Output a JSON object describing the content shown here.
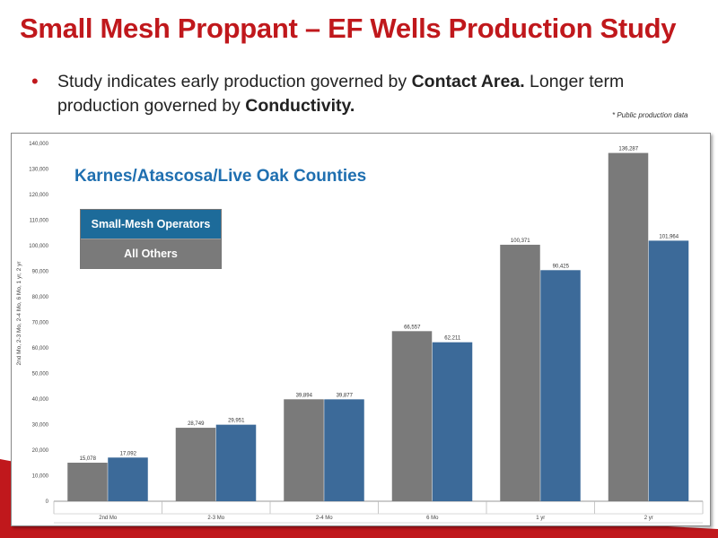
{
  "title": "Small Mesh Proppant – EF Wells Production Study",
  "bullet": {
    "text_1": "Study indicates early production governed by ",
    "bold_1": "Contact Area.",
    "text_2": "  Longer term production governed by ",
    "bold_2": "Conductivity."
  },
  "note": "* Public production data",
  "colors": {
    "title_red": "#c0181c",
    "small_mesh_legend": "#1d6b9a",
    "all_others_bar": "#7a7a7a",
    "small_mesh_bar": "#3c6a99",
    "county_title": "#1f6fb0"
  },
  "chart_data": {
    "type": "bar",
    "title": "Karnes/Atascosa/Live Oak Counties",
    "ylabel": "2nd Mo, 2-3 Mo, 2-4 Mo, 6 Mo, 1 yr, 2 yr",
    "xlabel": "",
    "ylim": [
      0,
      140000
    ],
    "yticks": [
      "0",
      "10,000",
      "20,000",
      "30,000",
      "40,000",
      "50,000",
      "60,000",
      "70,000",
      "80,000",
      "90,000",
      "100,000",
      "110,000",
      "120,000",
      "130,000",
      "140,000"
    ],
    "categories": [
      "2nd Mo",
      "2-3 Mo",
      "2-4 Mo",
      "6 Mo",
      "1 yr",
      "2 yr"
    ],
    "legend": [
      "Small-Mesh Operators",
      "All Others"
    ],
    "series": [
      {
        "name": "All Others",
        "color": "#7a7a7a",
        "values": [
          15078,
          28749,
          39894,
          66557,
          100371,
          136287
        ],
        "labels": [
          "15,078",
          "28,749",
          "39,894",
          "66,557",
          "100,371",
          "136,287"
        ]
      },
      {
        "name": "Small-Mesh Operators",
        "color": "#3c6a99",
        "values": [
          17092,
          29951,
          39877,
          62211,
          90425,
          101964
        ],
        "labels": [
          "17,092",
          "29,951",
          "39,877",
          "62,211",
          "90,425",
          "101,964"
        ]
      }
    ]
  }
}
